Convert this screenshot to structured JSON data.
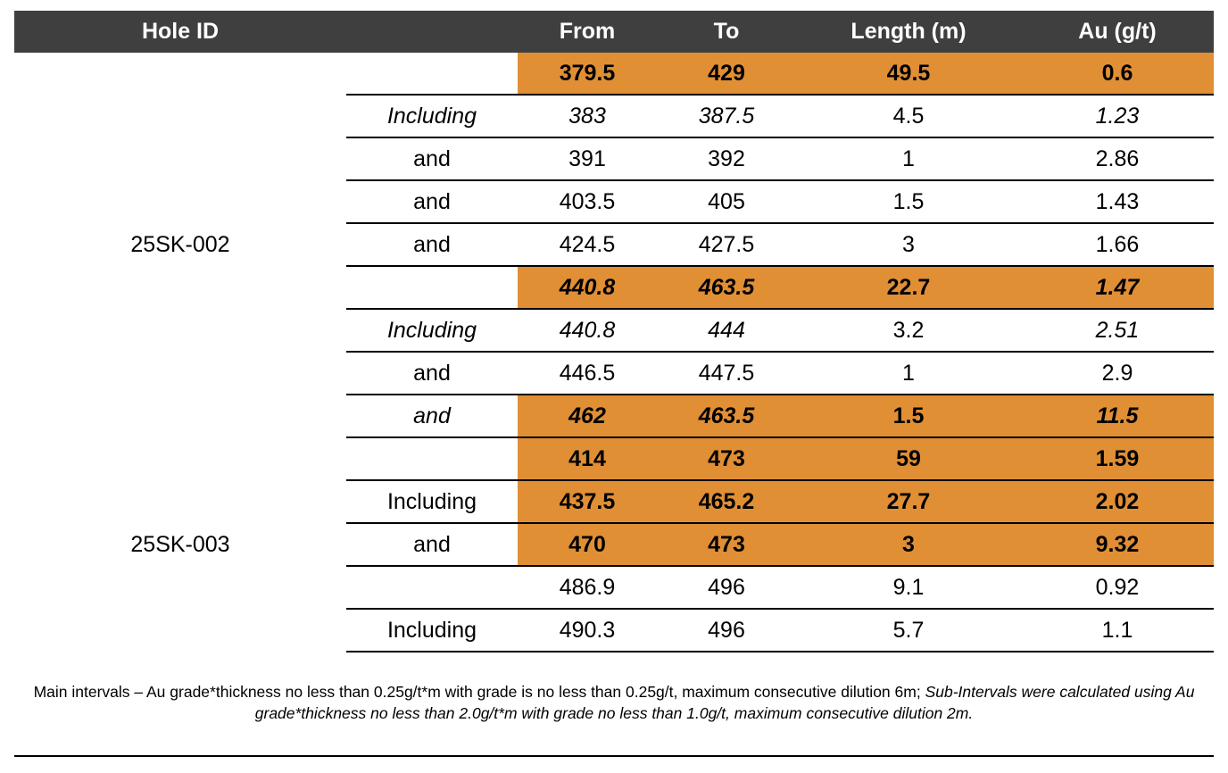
{
  "headers": [
    "Hole ID",
    "",
    "From",
    "To",
    "Length (m)",
    "Au (g/t)"
  ],
  "holes": [
    {
      "id": "25SK-002",
      "rows": [
        {
          "label": "",
          "from": "379.5",
          "to": "429",
          "length": "49.5",
          "au": "0.6",
          "highlight": true,
          "italic": [
            false,
            false,
            false,
            false,
            false
          ]
        },
        {
          "label": "Including",
          "from": "383",
          "to": "387.5",
          "length": "4.5",
          "au": "1.23",
          "highlight": false,
          "italic": [
            true,
            true,
            true,
            false,
            true
          ]
        },
        {
          "label": "and",
          "from": "391",
          "to": "392",
          "length": "1",
          "au": "2.86",
          "highlight": false,
          "italic": [
            false,
            false,
            false,
            false,
            false
          ]
        },
        {
          "label": "and",
          "from": "403.5",
          "to": "405",
          "length": "1.5",
          "au": "1.43",
          "highlight": false,
          "italic": [
            false,
            false,
            false,
            false,
            false
          ]
        },
        {
          "label": "and",
          "from": "424.5",
          "to": "427.5",
          "length": "3",
          "au": "1.66",
          "highlight": false,
          "italic": [
            false,
            false,
            false,
            false,
            false
          ]
        },
        {
          "label": "",
          "from": "440.8",
          "to": "463.5",
          "length": "22.7",
          "au": "1.47",
          "highlight": true,
          "italic": [
            false,
            true,
            true,
            false,
            true
          ]
        },
        {
          "label": "Including",
          "from": "440.8",
          "to": "444",
          "length": "3.2",
          "au": "2.51",
          "highlight": false,
          "italic": [
            true,
            true,
            true,
            false,
            true
          ]
        },
        {
          "label": "and",
          "from": "446.5",
          "to": "447.5",
          "length": "1",
          "au": "2.9",
          "highlight": false,
          "italic": [
            false,
            false,
            false,
            false,
            false
          ]
        },
        {
          "label": "and",
          "from": "462",
          "to": "463.5",
          "length": "1.5",
          "au": "11.5",
          "highlight": true,
          "italic": [
            true,
            true,
            true,
            false,
            true
          ]
        }
      ]
    },
    {
      "id": "25SK-003",
      "rows": [
        {
          "label": "",
          "from": "414",
          "to": "473",
          "length": "59",
          "au": "1.59",
          "highlight": true,
          "italic": [
            false,
            false,
            false,
            false,
            false
          ]
        },
        {
          "label": "Including",
          "from": "437.5",
          "to": "465.2",
          "length": "27.7",
          "au": "2.02",
          "highlight": true,
          "italic": [
            false,
            false,
            false,
            false,
            false
          ]
        },
        {
          "label": "and",
          "from": "470",
          "to": "473",
          "length": "3",
          "au": "9.32",
          "highlight": true,
          "italic": [
            false,
            false,
            false,
            false,
            false
          ]
        },
        {
          "label": "",
          "from": "486.9",
          "to": "496",
          "length": "9.1",
          "au": "0.92",
          "highlight": false,
          "italic": [
            false,
            false,
            false,
            false,
            false
          ]
        },
        {
          "label": "Including",
          "from": "490.3",
          "to": "496",
          "length": "5.7",
          "au": "1.1",
          "highlight": false,
          "italic": [
            false,
            false,
            false,
            false,
            false
          ]
        }
      ]
    }
  ],
  "footnote": {
    "main": "Main intervals – Au grade*thickness no less than 0.25g/t*m with grade is no less than 0.25g/t, maximum consecutive dilution 6m; ",
    "sub": "Sub-Intervals were calculated using Au grade*thickness no less than 2.0g/t*m with grade no less than 1.0g/t, maximum consecutive dilution 2m."
  },
  "colors": {
    "header_bg": "#3f3f3f",
    "header_text": "#ffffff",
    "highlight": "#e08f35"
  }
}
